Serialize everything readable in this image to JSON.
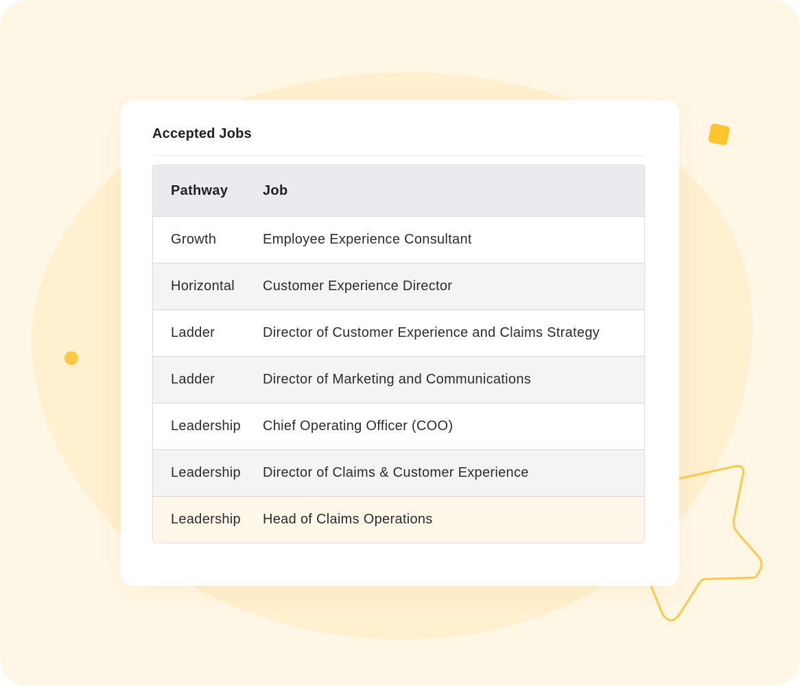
{
  "card": {
    "title": "Accepted Jobs"
  },
  "table": {
    "headers": [
      "Pathway",
      "Job"
    ],
    "rows": [
      {
        "pathway": "Growth",
        "job": "Employee Experience Consultant"
      },
      {
        "pathway": "Horizontal",
        "job": "Customer Experience Director"
      },
      {
        "pathway": "Ladder",
        "job": "Director of Customer Experience and Claims Strategy"
      },
      {
        "pathway": "Ladder",
        "job": "Director of Marketing and Communications"
      },
      {
        "pathway": "Leadership",
        "job": "Chief Operating Officer (COO)"
      },
      {
        "pathway": "Leadership",
        "job": "Director of Claims & Customer Experience"
      },
      {
        "pathway": "Leadership",
        "job": "Head of Claims Operations"
      }
    ]
  },
  "colors": {
    "background": "#fff7e6",
    "accent": "#ffc52e",
    "header_row": "#ebeaee",
    "alt_row": "#f4f3f6",
    "highlighted_row": "#fff8ea"
  },
  "icons": {
    "decor_square": "rounded-square-shape",
    "decor_dot": "dot-shape",
    "decor_star": "star-outline-shape"
  }
}
